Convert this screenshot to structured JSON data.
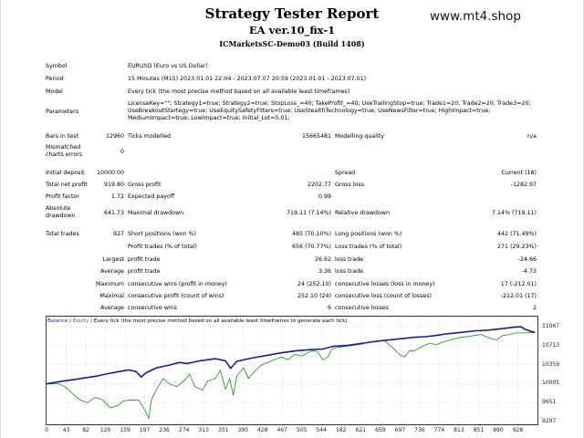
{
  "header": {
    "title": "Strategy Tester Report",
    "ea": "EA ver.10_fix-1",
    "server": "ICMarketsSC-Demo03 (Build 1408)",
    "brand": "www.mt4.shop"
  },
  "info": {
    "symbol_label": "Symbol",
    "symbol": "EURUSD (Euro vs US Dollar)",
    "period_label": "Period",
    "period": "15 Minutes (M15) 2023.01.01 22:04 - 2023.07.07 20:59 (2023.01.01 - 2023.07.01)",
    "model_label": "Model",
    "model": "Every tick (the most precise method based on all available least timeframes)",
    "params_label": "Parameters",
    "params": "LicenseKey=\"\"; Strategy1=true; Strategy2=true; StopLoss_=40; TakeProfit_=40; UseTrailingStop=true; Trade1=20; Trade2=20; Trade3=20; UseBreakoutStartegy=true; UseEquitySafetyFilters=true; UseStealthTechnology=true; UseNewsFilter=true; HighImpact=true; MediumImpact=true; LowImpact=true; Initial_Lot=0.01;"
  },
  "stats": {
    "bars_label": "Bars in test",
    "bars": "12960",
    "ticks_label": "Ticks modelled",
    "ticks": "15665481",
    "quality_label": "Modelling quality",
    "quality": "n/a",
    "mismatch_label": "Mismatched charts errors",
    "mismatch": "0",
    "deposit_label": "Initial deposit",
    "deposit": "10000.00",
    "spread_label": "Spread",
    "spread": "Current (18)",
    "netprofit_label": "Total net profit",
    "netprofit": "919.80",
    "grossprofit_label": "Gross profit",
    "grossprofit": "2202.77",
    "grossloss_label": "Gross loss",
    "grossloss": "-1282.97",
    "pf_label": "Profit factor",
    "pf": "1.72",
    "ep_label": "Expected payoff",
    "ep": "0.99",
    "absdd_label": "Absolute drawdown",
    "absdd": "641.73",
    "maxdd_label": "Maximal drawdown",
    "maxdd": "719.11 (7.14%)",
    "reldd_label": "Relative drawdown",
    "reldd": "7.14% (719.11)",
    "trades_label": "Total trades",
    "trades": "927",
    "short_label": "Short positions (won %)",
    "short": "485 (70.10%)",
    "long_label": "Long positions (won %)",
    "long": "442 (71.49%)",
    "ptrades_label": "Profit trades (% of total)",
    "ptrades": "656 (70.77%)",
    "ltrades_label": "Loss trades (% of total)",
    "ltrades": "271 (29.23%)",
    "largest": "Largest",
    "average": "Average",
    "maximum": "Maximum",
    "maximal": "Maximal",
    "pt_label": "profit trade",
    "lpt": "26.62",
    "apt": "3.36",
    "lt_label": "loss trade",
    "llt": "-24.66",
    "alt": "-4.73",
    "cwm_label": "consecutive wins (profit in money)",
    "cwm": "24 (252.10)",
    "clm_label": "consecutive losses (loss in money)",
    "clm": "17 (-212.01)",
    "cpc_label": "consecutive profit (count of wins)",
    "cpc": "252.10 (24)",
    "clc_label": "consecutive loss (count of losses)",
    "clc": "-212.01 (17)",
    "acw_label": "consecutive wins",
    "acw": "6",
    "acl_label": "consecutive losses",
    "acl": "2"
  },
  "chart_data": {
    "type": "line",
    "legend": {
      "balance": "Balance",
      "sep": " / ",
      "equity": "Equity",
      "note": " / Every tick (the most precise method based on all available least timeframes to generate each tick)"
    },
    "xlim": [
      0,
      960
    ],
    "ylim": [
      9297,
      11067
    ],
    "x_ticks": [
      "0",
      "43",
      "82",
      "120",
      "159",
      "197",
      "236",
      "274",
      "313",
      "351",
      "390",
      "428",
      "467",
      "505",
      "544",
      "582",
      "621",
      "659",
      "697",
      "736",
      "774",
      "813",
      "851",
      "890",
      "928"
    ],
    "y_ticks": [
      "11067",
      "10713",
      "10359",
      "10005",
      "9651",
      "9297"
    ],
    "colors": {
      "balance": "#1c1c8c",
      "equity": "#1a8c1a"
    },
    "balance": [
      [
        0,
        10000
      ],
      [
        30,
        10050
      ],
      [
        60,
        10090
      ],
      [
        100,
        10150
      ],
      [
        130,
        10210
      ],
      [
        160,
        10260
      ],
      [
        175,
        10230
      ],
      [
        185,
        10130
      ],
      [
        195,
        10210
      ],
      [
        215,
        10300
      ],
      [
        240,
        10350
      ],
      [
        260,
        10400
      ],
      [
        275,
        10380
      ],
      [
        300,
        10430
      ],
      [
        330,
        10470
      ],
      [
        350,
        10430
      ],
      [
        360,
        10290
      ],
      [
        372,
        10420
      ],
      [
        400,
        10480
      ],
      [
        430,
        10530
      ],
      [
        460,
        10580
      ],
      [
        490,
        10620
      ],
      [
        520,
        10640
      ],
      [
        540,
        10650
      ],
      [
        560,
        10700
      ],
      [
        590,
        10720
      ],
      [
        620,
        10760
      ],
      [
        650,
        10800
      ],
      [
        680,
        10830
      ],
      [
        700,
        10850
      ],
      [
        720,
        10870
      ],
      [
        740,
        10880
      ],
      [
        760,
        10900
      ],
      [
        780,
        10930
      ],
      [
        800,
        10950
      ],
      [
        820,
        10970
      ],
      [
        840,
        10990
      ],
      [
        860,
        11000
      ],
      [
        880,
        11020
      ],
      [
        900,
        11040
      ],
      [
        915,
        11060
      ],
      [
        928,
        11067
      ],
      [
        935,
        11020
      ],
      [
        945,
        10985
      ],
      [
        955,
        10960
      ]
    ],
    "equity": [
      [
        0,
        10000
      ],
      [
        25,
        10000
      ],
      [
        35,
        9950
      ],
      [
        50,
        9830
      ],
      [
        65,
        9700
      ],
      [
        80,
        9650
      ],
      [
        95,
        9750
      ],
      [
        110,
        9700
      ],
      [
        125,
        9550
      ],
      [
        140,
        9600
      ],
      [
        150,
        9680
      ],
      [
        165,
        9700
      ],
      [
        180,
        9700
      ],
      [
        192,
        9520
      ],
      [
        200,
        9350
      ],
      [
        205,
        9700
      ],
      [
        215,
        9900
      ],
      [
        228,
        10100
      ],
      [
        240,
        10000
      ],
      [
        255,
        9950
      ],
      [
        268,
        10050
      ],
      [
        280,
        10180
      ],
      [
        290,
        9950
      ],
      [
        305,
        9880
      ],
      [
        315,
        10050
      ],
      [
        330,
        10100
      ],
      [
        340,
        10250
      ],
      [
        350,
        9900
      ],
      [
        358,
        10100
      ],
      [
        365,
        9790
      ],
      [
        372,
        10150
      ],
      [
        385,
        10300
      ],
      [
        395,
        10100
      ],
      [
        408,
        10250
      ],
      [
        420,
        10350
      ],
      [
        432,
        10400
      ],
      [
        445,
        10450
      ],
      [
        460,
        10500
      ],
      [
        472,
        10450
      ],
      [
        485,
        10550
      ],
      [
        500,
        10520
      ],
      [
        510,
        10580
      ],
      [
        520,
        10620
      ],
      [
        530,
        10600
      ],
      [
        540,
        10450
      ],
      [
        550,
        10500
      ],
      [
        558,
        10650
      ],
      [
        570,
        10680
      ],
      [
        585,
        10700
      ],
      [
        600,
        10720
      ],
      [
        615,
        10740
      ],
      [
        630,
        10780
      ],
      [
        645,
        10800
      ],
      [
        660,
        10810
      ],
      [
        680,
        10650
      ],
      [
        690,
        10550
      ],
      [
        700,
        10500
      ],
      [
        710,
        10620
      ],
      [
        720,
        10620
      ],
      [
        735,
        10700
      ],
      [
        750,
        10760
      ],
      [
        762,
        10730
      ],
      [
        775,
        10780
      ],
      [
        790,
        10820
      ],
      [
        805,
        10860
      ],
      [
        820,
        10880
      ],
      [
        835,
        10900
      ],
      [
        850,
        10920
      ],
      [
        865,
        10860
      ],
      [
        880,
        10820
      ],
      [
        892,
        10900
      ],
      [
        905,
        10920
      ],
      [
        918,
        10950
      ],
      [
        930,
        10950
      ],
      [
        945,
        10955
      ],
      [
        955,
        10960
      ]
    ]
  }
}
